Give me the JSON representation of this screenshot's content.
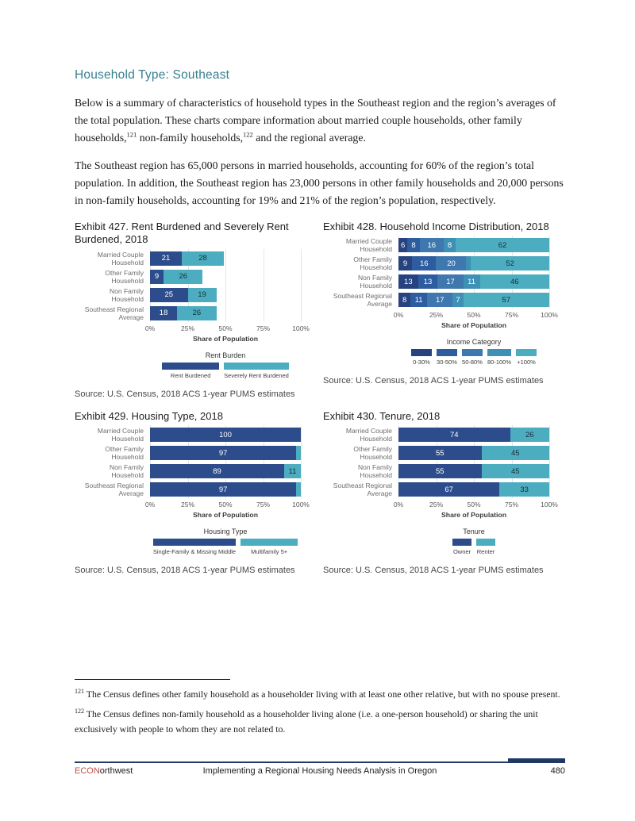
{
  "page": {
    "heading": "Household Type: Southeast",
    "paragraph1_parts": [
      {
        "t": "Below is a summary of characteristics of household types in the Southeast region and the region’s averages of the total population. These charts compare information about married couple households, other family households,"
      },
      {
        "sup": "121"
      },
      {
        "t": " non-family households,"
      },
      {
        "sup": "122"
      },
      {
        "t": " and the regional average."
      }
    ],
    "paragraph2": "The Southeast region has 65,000 persons in married households, accounting for 60% of the region’s total population. In addition, the Southeast region has 23,000 persons in other family households and 20,000 persons in non-family households, accounting for 19% and 21% of the region’s population, respectively.",
    "footnotes": [
      {
        "num": "121",
        "text": " The Census defines other family household as a householder living with at least one other relative, but with no spouse present."
      },
      {
        "num": "122",
        "text": " The Census defines non-family household as a householder living alone (i.e. a one-person household) or sharing the unit exclusively with people to whom they are not related to."
      }
    ],
    "footer": {
      "brand_red": "ECON",
      "brand_dark": "orthwest",
      "center_text": "Implementing a Regional Housing Needs Analysis in Oregon",
      "page_number": "480"
    }
  },
  "colors": {
    "heading_teal": "#37808f",
    "navy": "#2c4c8c",
    "teal": "#4badbf",
    "footer_rule_navy": "#1f3864",
    "brand_red": "#c0504d",
    "gridline": "#e5e5e5"
  },
  "chart_data": [
    {
      "type": "bar",
      "orientation": "horizontal",
      "stacked": true,
      "exhibit": "427",
      "title": "Exhibit 427. Rent Burdened and Severely Rent Burdened, 2018",
      "categories": [
        [
          "Married Couple",
          "Household"
        ],
        [
          "Other Family",
          "Household"
        ],
        [
          "Non Family",
          "Household"
        ],
        [
          "Southeast Regional",
          "Average"
        ]
      ],
      "series": [
        {
          "name": "Rent Burdened",
          "color": "#2c4c8c",
          "label_color": "#ffffff",
          "values": [
            21,
            9,
            25,
            18
          ]
        },
        {
          "name": "Severely Rent Burdened",
          "color": "#4badbf",
          "label_color": "#1a2e38",
          "values": [
            28,
            26,
            19,
            26
          ]
        }
      ],
      "xlabel": "Share of Population",
      "ticks": [
        "0%",
        "25%",
        "50%",
        "75%",
        "100%"
      ],
      "tick_positions": [
        0,
        25,
        50,
        75,
        100
      ],
      "xlim": [
        0,
        100
      ],
      "legend_title": "Rent Burden",
      "source": "Source: U.S. Census, 2018 ACS 1-year PUMS estimates"
    },
    {
      "type": "bar",
      "orientation": "horizontal",
      "stacked": true,
      "exhibit": "428",
      "title": "Exhibit 428. Household Income Distribution, 2018",
      "categories": [
        [
          "Married Couple",
          "Household"
        ],
        [
          "Other Family",
          "Household"
        ],
        [
          "Non Family",
          "Household"
        ],
        [
          "Southeast Regional",
          "Average"
        ]
      ],
      "series": [
        {
          "name": "0-30%",
          "color": "#26427f",
          "label_color": "#ffffff",
          "values": [
            6,
            9,
            13,
            8
          ]
        },
        {
          "name": "30-50%",
          "color": "#2d5ca0",
          "label_color": "#ffffff",
          "values": [
            8,
            16,
            13,
            11
          ]
        },
        {
          "name": "50-80%",
          "color": "#3f77af",
          "label_color": "#ffffff",
          "values": [
            16,
            20,
            17,
            17
          ]
        },
        {
          "name": "80-100%",
          "color": "#3e90b4",
          "label_color": "#ffffff",
          "values": [
            8,
            3,
            11,
            7
          ]
        },
        {
          "name": "+100%",
          "color": "#4badbf",
          "label_color": "#1a2e38",
          "values": [
            62,
            52,
            46,
            57
          ]
        }
      ],
      "xlabel": "Share of Population",
      "ticks": [
        "0%",
        "25%",
        "50%",
        "75%",
        "100%"
      ],
      "tick_positions": [
        0,
        25,
        50,
        75,
        100
      ],
      "xlim": [
        0,
        100
      ],
      "legend_title": "Income Category",
      "source": "Source: U.S. Census, 2018 ACS 1-year PUMS estimates"
    },
    {
      "type": "bar",
      "orientation": "horizontal",
      "stacked": true,
      "exhibit": "429",
      "title": "Exhibit 429. Housing Type, 2018",
      "categories": [
        [
          "Married Couple",
          "Household"
        ],
        [
          "Other Family",
          "Household"
        ],
        [
          "Non Family",
          "Household"
        ],
        [
          "Southeast Regional",
          "Average"
        ]
      ],
      "series": [
        {
          "name": "Single-Family & Missing Middle",
          "color": "#2c4c8c",
          "label_color": "#ffffff",
          "values": [
            100,
            97,
            89,
            97
          ]
        },
        {
          "name": "Multifamily 5+",
          "color": "#4badbf",
          "label_color": "#1a2e38",
          "values": [
            0,
            3,
            11,
            3
          ]
        }
      ],
      "xlabel": "Share of Population",
      "ticks": [
        "0%",
        "25%",
        "50%",
        "75%",
        "100%"
      ],
      "tick_positions": [
        0,
        25,
        50,
        75,
        100
      ],
      "xlim": [
        0,
        100
      ],
      "legend_title": "Housing Type",
      "source": "Source: U.S. Census, 2018 ACS 1-year PUMS estimates"
    },
    {
      "type": "bar",
      "orientation": "horizontal",
      "stacked": true,
      "exhibit": "430",
      "title": "Exhibit 430. Tenure, 2018",
      "categories": [
        [
          "Married Couple",
          "Household"
        ],
        [
          "Other Family",
          "Household"
        ],
        [
          "Non Family",
          "Household"
        ],
        [
          "Southeast Regional",
          "Average"
        ]
      ],
      "series": [
        {
          "name": "Owner",
          "color": "#2c4c8c",
          "label_color": "#ffffff",
          "values": [
            74,
            55,
            55,
            67
          ]
        },
        {
          "name": "Renter",
          "color": "#4badbf",
          "label_color": "#1a2e38",
          "values": [
            26,
            45,
            45,
            33
          ]
        }
      ],
      "xlabel": "Share of Population",
      "ticks": [
        "0%",
        "25%",
        "50%",
        "75%",
        "100%"
      ],
      "tick_positions": [
        0,
        25,
        50,
        75,
        100
      ],
      "xlim": [
        0,
        100
      ],
      "legend_title": "Tenure",
      "source": "Source: U.S. Census, 2018 ACS 1-year PUMS estimates"
    }
  ]
}
